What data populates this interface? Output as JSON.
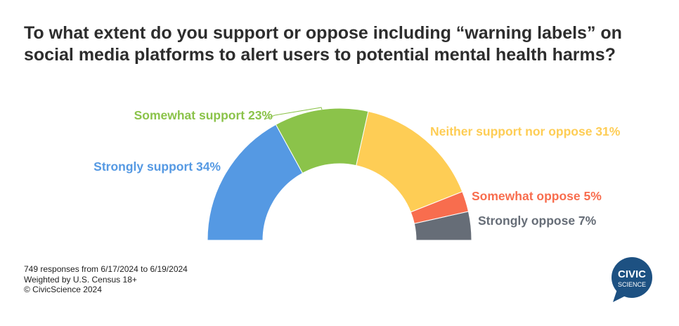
{
  "title": "To what extent do you support or oppose including “warning labels” on social media platforms to alert users to potential mental health harms?",
  "chart_data": {
    "type": "pie",
    "variant": "half-donut",
    "categories": [
      "Strongly support",
      "Somewhat support",
      "Neither support nor oppose",
      "Somewhat oppose",
      "Strongly oppose"
    ],
    "values": [
      34,
      23,
      31,
      5,
      7
    ],
    "labels": [
      "Strongly support 34%",
      "Somewhat support 23%",
      "Neither support nor oppose 31%",
      "Somewhat oppose 5%",
      "Strongly oppose 7%"
    ],
    "colors": [
      "#5599e3",
      "#8bc34a",
      "#fecd55",
      "#f86d4e",
      "#666d77"
    ]
  },
  "footer": {
    "line1": "749 responses from 6/17/2024 to 6/19/2024",
    "line2": "Weighted by U.S. Census 18+",
    "line3": "© CivicScience 2024"
  },
  "logo": {
    "line1": "CIVIC",
    "line2": "SCIENCE",
    "color": "#1d5182"
  }
}
